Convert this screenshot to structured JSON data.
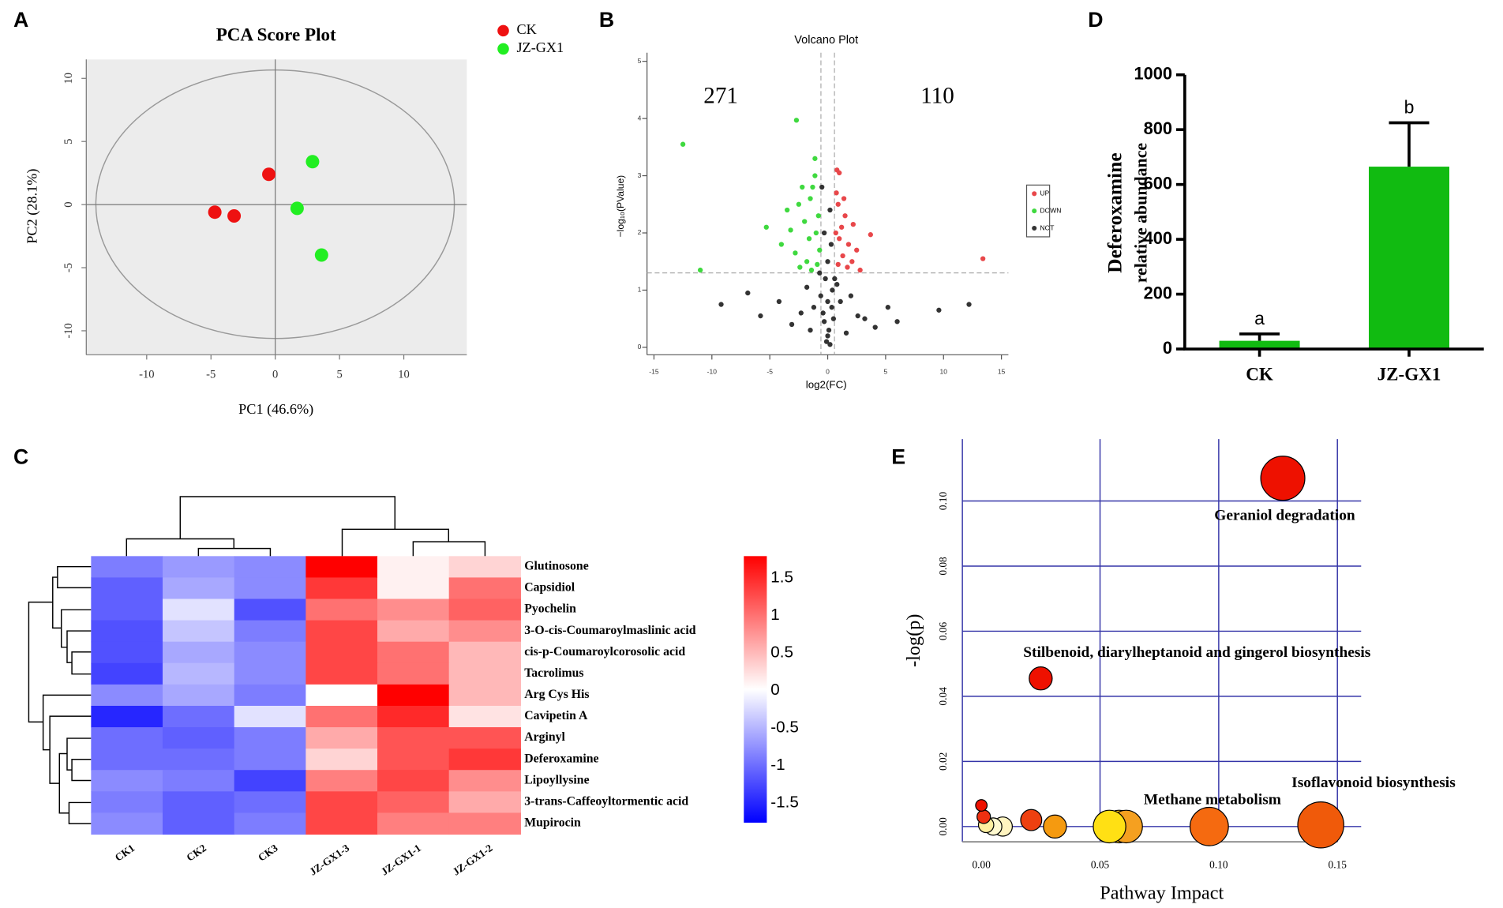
{
  "chart_data": [
    {
      "type": "scatter",
      "panel": "A",
      "title": "PCA Score Plot",
      "xlabel": "PC1 (46.6%)",
      "ylabel": "PC2 (28.1%)",
      "xlim": [
        -14.7,
        14.9
      ],
      "ylim": [
        -11.9,
        11.5
      ],
      "xticks": [
        -10,
        -5,
        0,
        5,
        10
      ],
      "yticks": [
        -10,
        -5,
        0,
        5,
        10
      ],
      "zero_lines": true,
      "series": [
        {
          "name": "CK",
          "color": "#ee1111",
          "x": [
            -0.5,
            -4.7,
            -3.2
          ],
          "y": [
            2.4,
            -0.6,
            -0.9
          ]
        },
        {
          "name": "JZ-GX1",
          "color": "#22ee22",
          "x": [
            2.9,
            1.7,
            3.6
          ],
          "y": [
            3.4,
            -0.3,
            -4.0
          ]
        }
      ]
    },
    {
      "type": "scatter",
      "panel": "B",
      "title": "Volcano Plot",
      "xlabel": "log2(FC)",
      "ylabel": "−log₁₀(PValue)",
      "xlim": [
        -15.6,
        15.6
      ],
      "ylim": [
        -0.13,
        5.15
      ],
      "xticks": [
        -15,
        -10,
        -5,
        0,
        5,
        10,
        15
      ],
      "yticks": [
        0,
        1,
        2,
        3,
        4,
        5
      ],
      "thresholds": {
        "x": [
          -0.585,
          0.585
        ],
        "y": 1.301
      },
      "annotations": [
        "271",
        "110"
      ],
      "series": [
        {
          "name": "UP",
          "color": "#e8474a",
          "x": [
            0.8,
            1.0,
            0.9,
            1.5,
            2.2,
            3.7,
            1.2,
            0.7,
            1.8,
            2.5,
            1.3,
            0.9,
            1.7,
            2.1,
            13.4,
            0.75,
            1.4,
            2.8,
            1.0
          ],
          "y": [
            3.1,
            3.05,
            2.5,
            2.3,
            2.15,
            1.97,
            2.1,
            2.0,
            1.8,
            1.7,
            1.6,
            1.45,
            1.4,
            1.5,
            1.55,
            2.7,
            2.6,
            1.35,
            1.9
          ]
        },
        {
          "name": "DOWN",
          "color": "#3fd93f",
          "x": [
            -12.5,
            -2.7,
            -1.1,
            -11.0,
            -5.3,
            -3.5,
            -2.5,
            -1.5,
            -2.0,
            -1.0,
            -4.0,
            -2.8,
            -1.8,
            -0.9,
            -1.3,
            -2.2,
            -0.8,
            -1.6,
            -3.2,
            -0.7,
            -1.1,
            -2.4,
            -1.4
          ],
          "y": [
            3.55,
            3.97,
            3.3,
            1.35,
            2.1,
            2.4,
            2.5,
            2.6,
            2.2,
            2.0,
            1.8,
            1.65,
            1.5,
            1.45,
            2.8,
            2.8,
            2.3,
            1.9,
            2.05,
            1.7,
            3.0,
            1.4,
            1.35
          ]
        },
        {
          "name": "NOT",
          "color": "#333333",
          "x": [
            -9.2,
            -5.8,
            -4.2,
            5.2,
            6.0,
            9.6,
            12.2,
            -3.1,
            3.2,
            4.1,
            -6.9,
            -1.8,
            2.0,
            -0.5,
            0.2,
            -0.3,
            0.3,
            0.0,
            -0.2,
            0.4,
            0.0,
            -0.4,
            0.5,
            0.1,
            -0.1,
            0.2,
            -0.6,
            0.6,
            -1.2,
            1.1,
            -2.3,
            2.6,
            -1.5,
            1.6,
            0.0,
            -0.3,
            0.35,
            -0.7,
            0.8
          ],
          "y": [
            0.75,
            0.55,
            0.8,
            0.7,
            0.45,
            0.65,
            0.75,
            0.4,
            0.5,
            0.35,
            0.95,
            1.05,
            0.9,
            2.8,
            2.4,
            2.0,
            1.8,
            1.5,
            1.2,
            1.0,
            0.8,
            0.6,
            0.5,
            0.3,
            0.1,
            0.05,
            0.9,
            1.2,
            0.7,
            0.8,
            0.6,
            0.55,
            0.3,
            0.25,
            0.2,
            0.45,
            0.7,
            1.3,
            1.1
          ]
        }
      ]
    },
    {
      "type": "heatmap",
      "panel": "C",
      "columns": [
        "CK1",
        "CK2",
        "CK3",
        "JZ-GX1-3",
        "JZ-GX1-1",
        "JZ-GX1-2"
      ],
      "rows": [
        "Glutinosone",
        "Capsidiol",
        "Pyochelin",
        "3-O-cis-Coumaroylmaslinic acid",
        "cis-p-Coumaroylcorosolic acid",
        "Tacrolimus",
        "Arg Cys His",
        "Cavipetin A",
        "Arginyl",
        "Deferoxamine",
        "Lipoyllysine",
        "3-trans-Caffeoyltormentic acid",
        "Mupirocin"
      ],
      "values": [
        [
          -0.9,
          -0.7,
          -0.8,
          1.8,
          0.1,
          0.3
        ],
        [
          -1.1,
          -0.6,
          -0.8,
          1.4,
          0.1,
          1.0
        ],
        [
          -1.1,
          -0.2,
          -1.2,
          1.0,
          0.8,
          1.1
        ],
        [
          -1.2,
          -0.4,
          -0.9,
          1.3,
          0.6,
          0.8
        ],
        [
          -1.2,
          -0.6,
          -0.8,
          1.3,
          1.0,
          0.5
        ],
        [
          -1.3,
          -0.5,
          -0.8,
          1.3,
          1.0,
          0.5
        ],
        [
          -0.8,
          -0.6,
          -0.9,
          0.0,
          1.8,
          0.5
        ],
        [
          -1.5,
          -1.0,
          -0.2,
          1.0,
          1.5,
          0.2
        ],
        [
          -1.0,
          -1.1,
          -0.9,
          0.6,
          1.2,
          1.2
        ],
        [
          -1.0,
          -1.0,
          -0.9,
          0.3,
          1.2,
          1.4
        ],
        [
          -0.8,
          -0.9,
          -1.3,
          0.9,
          1.3,
          0.8
        ],
        [
          -0.9,
          -1.1,
          -1.0,
          1.3,
          1.1,
          0.6
        ],
        [
          -0.8,
          -1.1,
          -0.9,
          1.3,
          0.9,
          0.9
        ]
      ],
      "zlim": [
        -1.76,
        1.79
      ],
      "zticks": [
        1.5,
        1,
        0.5,
        0,
        -0.5,
        -1,
        -1.5
      ],
      "colors": [
        "#0000ff",
        "#ffffff",
        "#ff0000"
      ]
    },
    {
      "type": "bar",
      "panel": "D",
      "ylabel": [
        "Deferoxamine",
        "relative abundance"
      ],
      "categories": [
        "CK",
        "JZ-GX1"
      ],
      "values": [
        30,
        665
      ],
      "errors": [
        25,
        160
      ],
      "annotations": [
        "a",
        "b"
      ],
      "color": "#11bb11",
      "ylim": [
        0,
        1000
      ],
      "yticks": [
        0,
        200,
        400,
        600,
        800,
        1000
      ]
    },
    {
      "type": "bubble",
      "panel": "E",
      "xlabel": "Pathway Impact",
      "ylabel": "-log(p)",
      "xlim": [
        -0.008,
        0.16
      ],
      "ylim": [
        -0.0047,
        0.119
      ],
      "xticks": [
        {
          "value": 0,
          "label": "0.00"
        },
        {
          "value": 0.05,
          "label": "0.05"
        },
        {
          "value": 0.1,
          "label": "0.10"
        },
        {
          "value": 0.15,
          "label": "0.15"
        }
      ],
      "yticks": [
        {
          "value": 0,
          "label": "0.00"
        },
        {
          "value": 0.02,
          "label": "0.02"
        },
        {
          "value": 0.04,
          "label": "0.04"
        },
        {
          "value": 0.06,
          "label": "0.06"
        },
        {
          "value": 0.08,
          "label": "0.08"
        },
        {
          "value": 0.1,
          "label": "0.10"
        }
      ],
      "grid": true,
      "x": [
        0.127,
        0.025,
        0.143,
        0.054,
        0.061,
        0.058,
        0.096,
        0.031,
        0.021,
        0.0,
        0.001,
        0.002,
        0.005,
        0.009
      ],
      "y": [
        0.107,
        0.0455,
        0.0005,
        0.0,
        0.0,
        0.0,
        0.0,
        0.0,
        0.002,
        0.0065,
        0.003,
        0.0005,
        0.0,
        0.0
      ],
      "sizes": [
        23,
        12,
        24,
        17,
        17,
        17,
        20,
        12,
        11,
        6,
        7,
        8,
        9,
        10
      ],
      "colors": [
        "#ee1100",
        "#ee1100",
        "#f05a0a",
        "#ffe014",
        "#f5a020",
        "#f8c010",
        "#f56a10",
        "#f59a10",
        "#ee4010",
        "#ee1100",
        "#ee3010",
        "#fff0a0",
        "#fffad0",
        "#fff4c0"
      ],
      "labels": [
        "Geraniol degradation",
        "Stilbenoid, diarylheptanoid and gingerol biosynthesis",
        "Isoflavonoid biosynthesis",
        null,
        "Methane metabolism",
        null,
        null,
        null,
        null,
        null,
        null,
        null,
        null,
        null
      ]
    }
  ]
}
